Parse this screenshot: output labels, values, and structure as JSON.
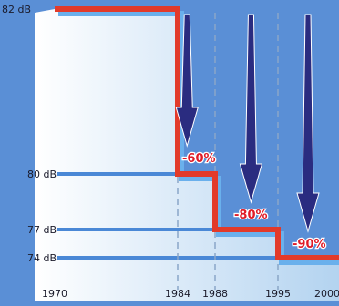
{
  "colors": {
    "background": "#5a8fd6",
    "panel_light": "#ffffff",
    "panel_dark": "#b3d3f0",
    "step_line": "#e23a2a",
    "guide_line": "#4a88d6",
    "arrow_fill": "#2a2c80",
    "percent_text": "#e01c28",
    "label_text": "#1a1a2a"
  },
  "chart_data": {
    "type": "line",
    "line_shape": "step",
    "x": [
      1970,
      1984,
      1988,
      1995,
      2000
    ],
    "y": [
      82,
      80,
      77,
      74,
      74
    ],
    "xlim": [
      1970,
      2000
    ],
    "ylim": [
      73.5,
      82
    ],
    "y_tick_labels": [
      "82 dB",
      "80 dB",
      "77 dB",
      "74 dB"
    ],
    "x_tick_labels": [
      "1970",
      "1984",
      "1988",
      "1995",
      "2000"
    ],
    "dashed_year_markers": [
      1984,
      1988,
      1995
    ],
    "annotations": [
      {
        "text": "-60%",
        "x": 1984,
        "y": 80
      },
      {
        "text": "-80%",
        "x": 1988,
        "y": 77
      },
      {
        "text": "-90%",
        "x": 1995,
        "y": 74
      }
    ],
    "arrows_down_at": [
      1985,
      1992,
      1998
    ]
  }
}
